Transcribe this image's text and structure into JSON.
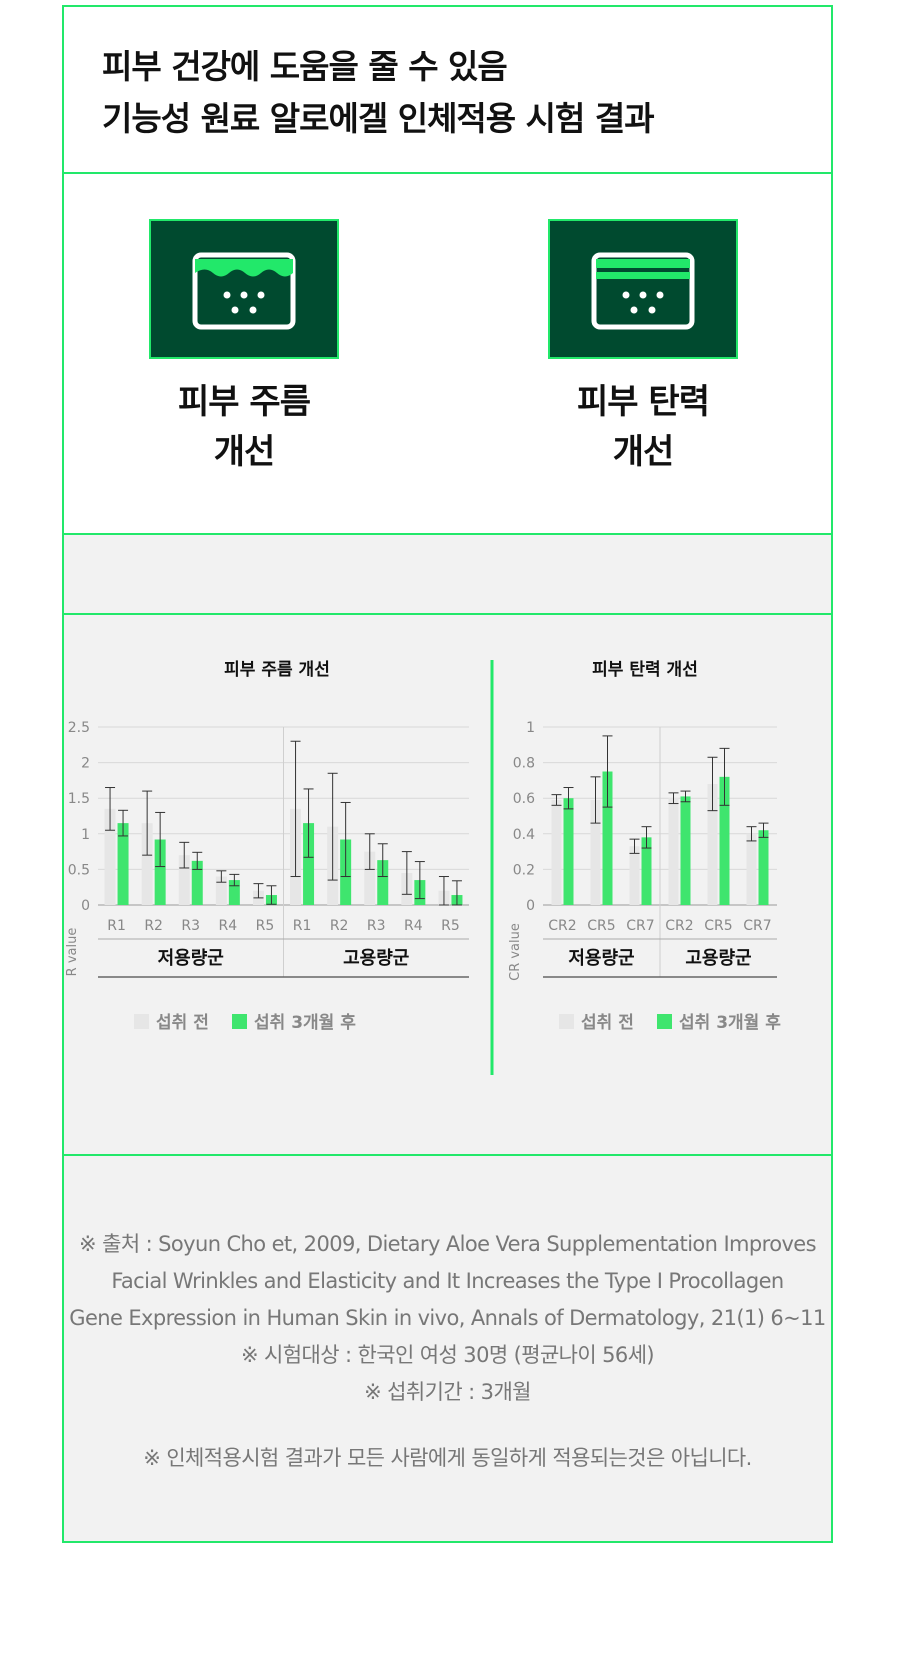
{
  "header": {
    "title_line1": "피부 건강에 도움을 줄 수 있음",
    "title_line2": "기능성 원료 알로에겔 인체적용 시험 결과"
  },
  "features": [
    {
      "label_line1": "피부 주름",
      "label_line2": "개선",
      "icon": "skin-wrinkle-icon"
    },
    {
      "label_line1": "피부 탄력",
      "label_line2": "개선",
      "icon": "skin-elasticity-icon"
    }
  ],
  "colors": {
    "accent": "#22e86a",
    "dark_green": "#004a2f",
    "before": "#e6e6e6",
    "after": "#3fe56e",
    "panel": "#f2f2f2"
  },
  "legend": {
    "before": "섭취 전",
    "after": "섭취 3개월 후"
  },
  "chart_data": [
    {
      "type": "bar",
      "title": "피부 주름 개선",
      "ylabel": "R value",
      "ylim": [
        0,
        2.5
      ],
      "yticks": [
        "2.5",
        "2",
        "1.5",
        "1",
        "0.5",
        "0"
      ],
      "groups": [
        "저용량군",
        "고용량군"
      ],
      "categories": [
        "R1",
        "R2",
        "R3",
        "R4",
        "R5"
      ],
      "series": [
        {
          "name": "섭취 전",
          "values": [
            [
              1.35,
              1.15,
              0.7,
              0.4,
              0.2
            ],
            [
              1.35,
              1.1,
              0.75,
              0.45,
              0.2
            ]
          ],
          "errors": [
            [
              0.3,
              0.45,
              0.18,
              0.08,
              0.1
            ],
            [
              0.95,
              0.75,
              0.25,
              0.3,
              0.2
            ]
          ]
        },
        {
          "name": "섭취 3개월 후",
          "values": [
            [
              1.15,
              0.92,
              0.62,
              0.35,
              0.14
            ],
            [
              1.15,
              0.92,
              0.63,
              0.35,
              0.14
            ]
          ],
          "errors": [
            [
              0.18,
              0.38,
              0.12,
              0.08,
              0.13
            ],
            [
              0.48,
              0.52,
              0.23,
              0.26,
              0.2
            ]
          ]
        }
      ]
    },
    {
      "type": "bar",
      "title": "피부 탄력 개선",
      "ylabel": "CR value",
      "ylim": [
        0,
        1
      ],
      "yticks": [
        "1",
        "0.8",
        "0.6",
        "0.4",
        "0.2",
        "0"
      ],
      "groups": [
        "저용량군",
        "고용량군"
      ],
      "categories": [
        "CR2",
        "CR5",
        "CR7"
      ],
      "series": [
        {
          "name": "섭취 전",
          "values": [
            [
              0.59,
              0.59,
              0.33
            ],
            [
              0.6,
              0.68,
              0.4
            ]
          ],
          "errors": [
            [
              0.03,
              0.13,
              0.04
            ],
            [
              0.03,
              0.15,
              0.04
            ]
          ]
        },
        {
          "name": "섭취 3개월 후",
          "values": [
            [
              0.6,
              0.75,
              0.38
            ],
            [
              0.61,
              0.72,
              0.42
            ]
          ],
          "errors": [
            [
              0.06,
              0.2,
              0.06
            ],
            [
              0.03,
              0.16,
              0.04
            ]
          ]
        }
      ]
    }
  ],
  "reference": {
    "line1": "※ 출처 : Soyun Cho et, 2009, Dietary Aloe Vera Supplementation Improves",
    "line2": "Facial Wrinkles and Elasticity and It Increases the Type I Procollagen",
    "line3": "Gene Expression in Human Skin in vivo, Annals of Dermatology, 21(1) 6~11",
    "line4": "※ 시험대상 : 한국인 여성 30명 (평균나이 56세)",
    "line5": "※ 섭취기간 : 3개월",
    "note": "※ 인체적용시험 결과가 모든 사람에게 동일하게 적용되는것은 아닙니다."
  }
}
